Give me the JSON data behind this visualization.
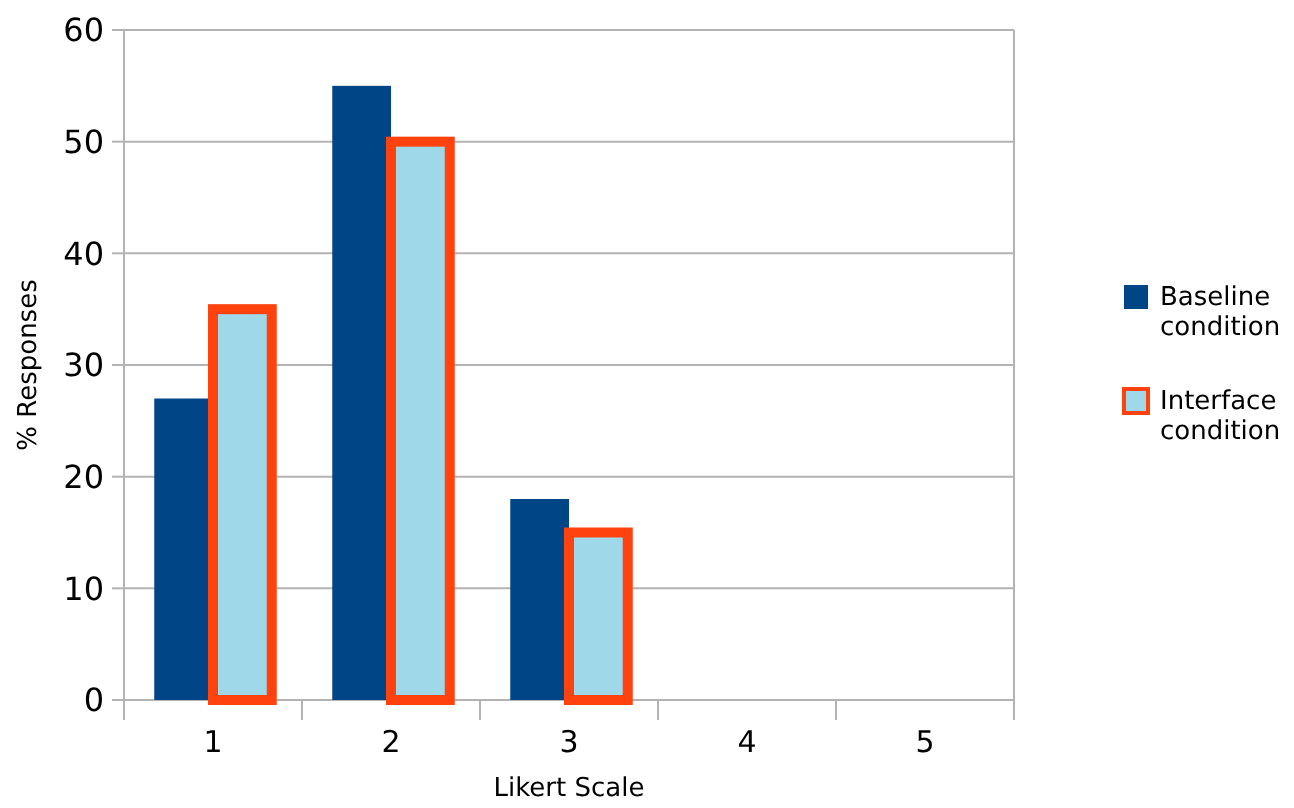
{
  "chart_data": {
    "type": "bar",
    "xlabel": "Likert Scale",
    "ylabel": "% Responses",
    "categories": [
      "1",
      "2",
      "3",
      "4",
      "5"
    ],
    "series": [
      {
        "name": "Baseline condition",
        "color": "#004586",
        "values": [
          27,
          55,
          18,
          0,
          0
        ]
      },
      {
        "name": "Interface condition",
        "color": "#9fd8e8",
        "values": [
          35,
          50,
          15,
          0,
          0
        ]
      }
    ],
    "ylim": [
      0,
      60
    ],
    "yticks": [
      0,
      10,
      20,
      30,
      40,
      50,
      60
    ],
    "grid": "y",
    "legend": "right"
  }
}
